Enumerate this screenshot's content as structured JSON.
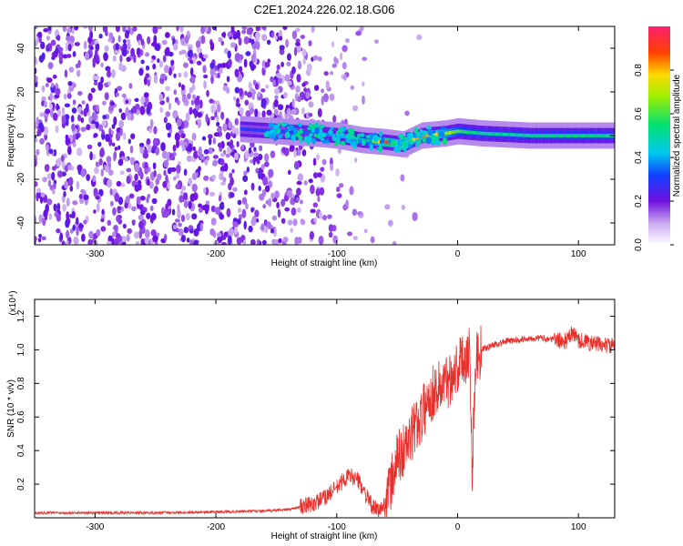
{
  "title": "C2E1.2024.226.02.18.G06",
  "colors": {
    "snr_line": "#e8302c",
    "axis": "#000000",
    "background": "#ffffff"
  },
  "chart_data": [
    {
      "type": "heatmap",
      "xlabel": "Height of straight line (km)",
      "ylabel": "Frequency (Hz)",
      "xlim": [
        -350,
        130
      ],
      "ylim": [
        -50,
        50
      ],
      "xticks": [
        -300,
        -200,
        -100,
        0,
        100
      ],
      "yticks": [
        -40,
        -20,
        0,
        20,
        40
      ],
      "colorbar": {
        "label": "Normalized spectral amplitude",
        "range": [
          0,
          1
        ],
        "ticks": [
          0.0,
          0.2,
          0.4,
          0.6,
          0.8
        ]
      },
      "noise_region": {
        "x_range": [
          -350,
          -80
        ],
        "freq_range": [
          -50,
          50
        ]
      },
      "signal_line": {
        "description_free": true,
        "x": [
          -180,
          -150,
          -120,
          -100,
          -80,
          -60,
          -45,
          -30,
          -10,
          0,
          20,
          60,
          100,
          130
        ],
        "freq": [
          3,
          2,
          1,
          0,
          -2,
          -3,
          -4,
          0,
          1,
          2,
          1,
          0,
          0,
          0
        ],
        "amplitude": [
          0.3,
          0.3,
          0.35,
          0.4,
          0.45,
          0.9,
          0.7,
          0.85,
          0.7,
          0.6,
          0.5,
          0.5,
          0.55,
          0.5
        ]
      }
    },
    {
      "type": "line",
      "xlabel": "Height of straight line (km)",
      "ylabel": "SNR (10 * v/v)",
      "y_multiplier": "(x10⁴)",
      "xlim": [
        -350,
        130
      ],
      "ylim": [
        0,
        1.3
      ],
      "xticks": [
        -300,
        -200,
        -100,
        0,
        100
      ],
      "yticks": [
        0.2,
        0.4,
        0.6,
        0.8,
        1.0,
        1.2
      ],
      "series": [
        {
          "x": [
            -350,
            -300,
            -250,
            -200,
            -160,
            -140,
            -120,
            -110,
            -100,
            -95,
            -90,
            -85,
            -80,
            -75,
            -70,
            -65,
            -60,
            -55,
            -50,
            -45,
            -40,
            -35,
            -30,
            -25,
            -20,
            -15,
            -10,
            -5,
            0,
            5,
            10,
            12,
            15,
            20,
            30,
            40,
            50,
            60,
            70,
            80,
            90,
            95,
            100,
            110,
            120,
            130
          ],
          "y": [
            0.03,
            0.03,
            0.03,
            0.035,
            0.04,
            0.05,
            0.08,
            0.12,
            0.18,
            0.22,
            0.25,
            0.24,
            0.2,
            0.12,
            0.06,
            0.04,
            0.08,
            0.2,
            0.35,
            0.4,
            0.45,
            0.55,
            0.6,
            0.7,
            0.75,
            0.78,
            0.8,
            0.85,
            0.9,
            0.95,
            1.0,
            0.3,
            0.95,
            1.0,
            1.03,
            1.05,
            1.06,
            1.07,
            1.07,
            1.06,
            1.05,
            1.1,
            1.06,
            1.04,
            1.03,
            1.02
          ]
        }
      ]
    }
  ]
}
